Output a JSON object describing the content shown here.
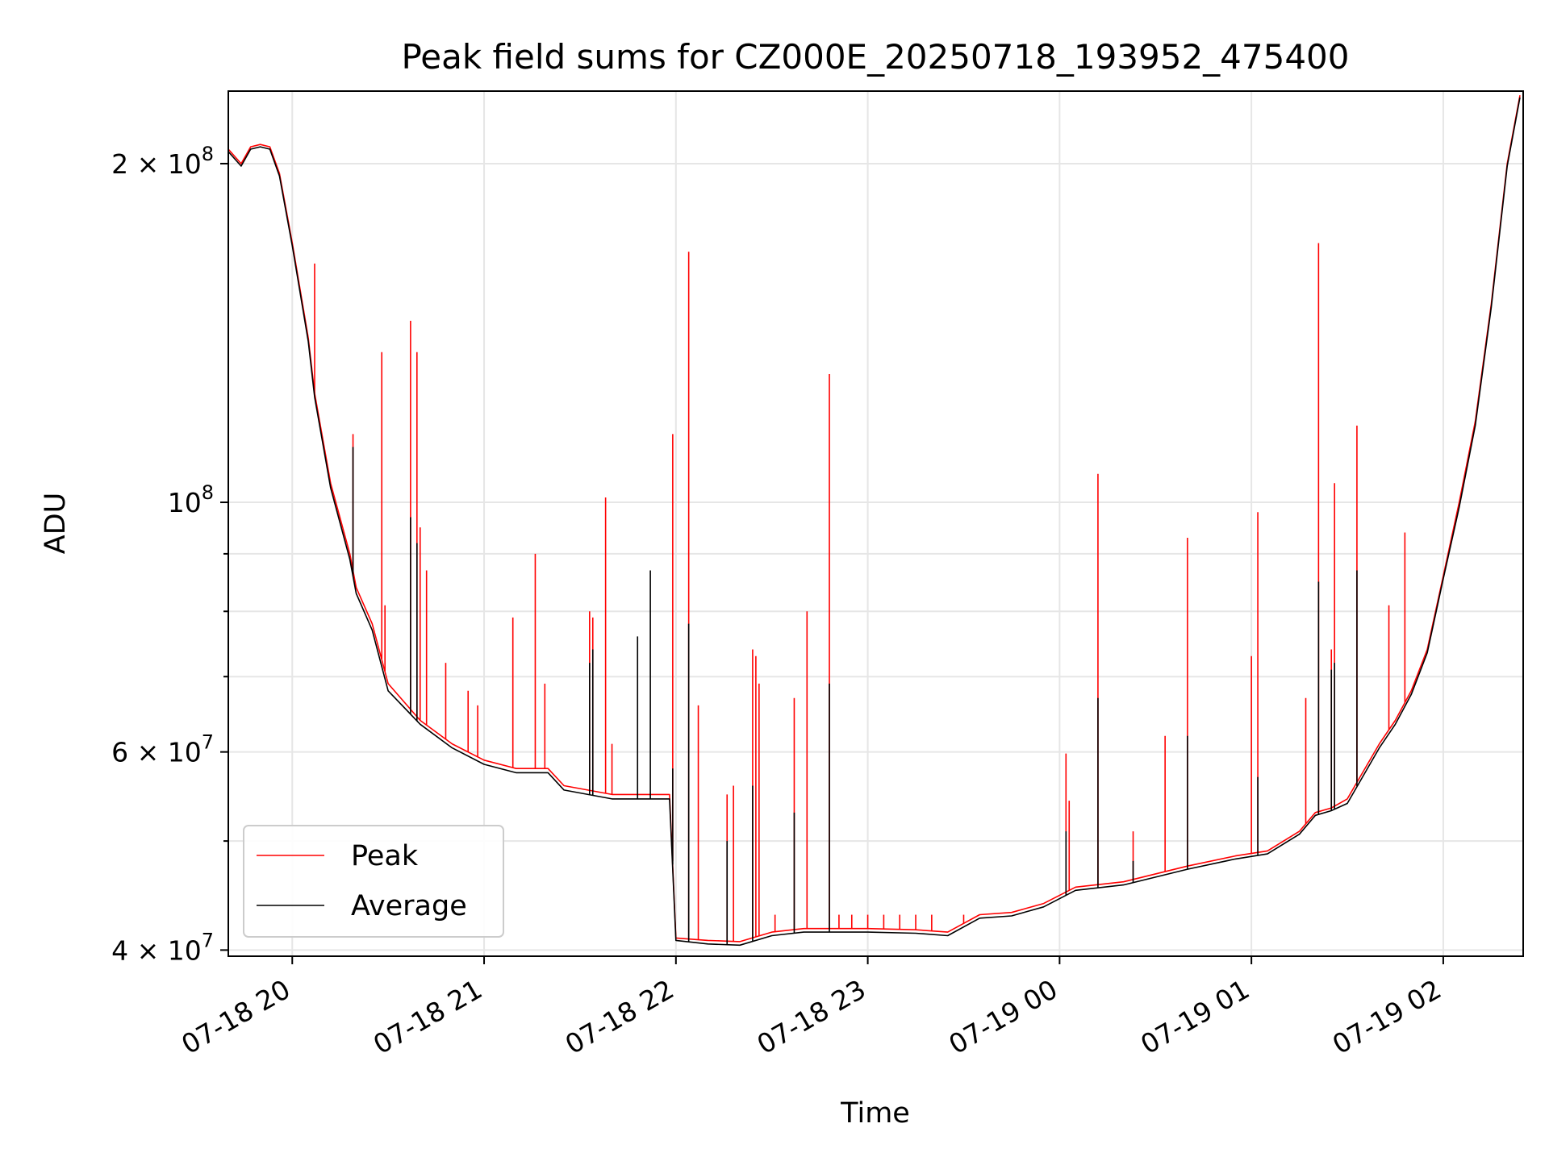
{
  "chart_data": {
    "type": "line",
    "title": "Peak field sums for CZ000E_20250718_193952_475400",
    "xlabel": "Time",
    "ylabel": "ADU",
    "y_scale": "log",
    "ylim": [
      39500000,
      232000000
    ],
    "xlim": [
      "2025-07-18 19:40",
      "2025-07-19 02:25"
    ],
    "x_tick_labels": [
      "07-18 20",
      "07-18 21",
      "07-18 22",
      "07-18 23",
      "07-19 00",
      "07-19 01",
      "07-19 02"
    ],
    "y_tick_labels": [
      {
        "value": 40000000,
        "base": "4",
        "exponent": "7"
      },
      {
        "value": 60000000,
        "base": "6",
        "exponent": "7"
      },
      {
        "value": 100000000,
        "base": "",
        "exponent": "8"
      },
      {
        "value": 200000000,
        "base": "2",
        "exponent": "8"
      }
    ],
    "grid": true,
    "legend_position": "lower-left",
    "series": [
      {
        "name": "Peak",
        "color": "#ff0000",
        "x": [
          "2025-07-18 19:40",
          "2025-07-18 19:44",
          "2025-07-18 19:47",
          "2025-07-18 19:50",
          "2025-07-18 19:53",
          "2025-07-18 19:56",
          "2025-07-18 20:00",
          "2025-07-18 20:05",
          "2025-07-18 20:07",
          "2025-07-18 20:12",
          "2025-07-18 20:18",
          "2025-07-18 20:20",
          "2025-07-18 20:25",
          "2025-07-18 20:30",
          "2025-07-18 20:40",
          "2025-07-18 20:50",
          "2025-07-18 21:00",
          "2025-07-18 21:10",
          "2025-07-18 21:20",
          "2025-07-18 21:25",
          "2025-07-18 21:40",
          "2025-07-18 21:58",
          "2025-07-18 22:00",
          "2025-07-18 22:10",
          "2025-07-18 22:20",
          "2025-07-18 22:30",
          "2025-07-18 22:40",
          "2025-07-18 23:00",
          "2025-07-18 23:15",
          "2025-07-18 23:25",
          "2025-07-18 23:35",
          "2025-07-18 23:45",
          "2025-07-18 23:55",
          "2025-07-19 00:05",
          "2025-07-19 00:20",
          "2025-07-19 00:40",
          "2025-07-19 00:55",
          "2025-07-19 01:05",
          "2025-07-19 01:15",
          "2025-07-19 01:20",
          "2025-07-19 01:25",
          "2025-07-19 01:30",
          "2025-07-19 01:40",
          "2025-07-19 01:45",
          "2025-07-19 01:50",
          "2025-07-19 01:55",
          "2025-07-19 02:00",
          "2025-07-19 02:05",
          "2025-07-19 02:10",
          "2025-07-19 02:15",
          "2025-07-19 02:20",
          "2025-07-19 02:24"
        ],
        "values": [
          206000000,
          200000000,
          207000000,
          208000000,
          207000000,
          196000000,
          170000000,
          140000000,
          125000000,
          104000000,
          90000000,
          84000000,
          78000000,
          69000000,
          64000000,
          61000000,
          59000000,
          58000000,
          58000000,
          56000000,
          55000000,
          55000000,
          41000000,
          40800000,
          40700000,
          41500000,
          41800000,
          41800000,
          41700000,
          41500000,
          43000000,
          43200000,
          44000000,
          45500000,
          46000000,
          47500000,
          48500000,
          49000000,
          51000000,
          53000000,
          53500000,
          54500000,
          61000000,
          64000000,
          68000000,
          74000000,
          86000000,
          100000000,
          118000000,
          150000000,
          200000000,
          230000000
        ],
        "spikes": [
          [
            "2025-07-18 20:07",
            163000000
          ],
          [
            "2025-07-18 20:19",
            115000000
          ],
          [
            "2025-07-18 20:28",
            136000000
          ],
          [
            "2025-07-18 20:29",
            81000000
          ],
          [
            "2025-07-18 20:37",
            145000000
          ],
          [
            "2025-07-18 20:39",
            136000000
          ],
          [
            "2025-07-18 20:40",
            95000000
          ],
          [
            "2025-07-18 20:42",
            87000000
          ],
          [
            "2025-07-18 20:48",
            72000000
          ],
          [
            "2025-07-18 20:55",
            68000000
          ],
          [
            "2025-07-18 20:58",
            66000000
          ],
          [
            "2025-07-18 21:09",
            79000000
          ],
          [
            "2025-07-18 21:16",
            90000000
          ],
          [
            "2025-07-18 21:19",
            69000000
          ],
          [
            "2025-07-18 21:33",
            80000000
          ],
          [
            "2025-07-18 21:34",
            79000000
          ],
          [
            "2025-07-18 21:38",
            101000000
          ],
          [
            "2025-07-18 21:40",
            61000000
          ],
          [
            "2025-07-18 21:59",
            115000000
          ],
          [
            "2025-07-18 22:04",
            167000000
          ],
          [
            "2025-07-18 22:07",
            66000000
          ],
          [
            "2025-07-18 22:16",
            55000000
          ],
          [
            "2025-07-18 22:18",
            56000000
          ],
          [
            "2025-07-18 22:24",
            74000000
          ],
          [
            "2025-07-18 22:25",
            73000000
          ],
          [
            "2025-07-18 22:26",
            69000000
          ],
          [
            "2025-07-18 22:31",
            43000000
          ],
          [
            "2025-07-18 22:37",
            67000000
          ],
          [
            "2025-07-18 22:41",
            80000000
          ],
          [
            "2025-07-18 22:48",
            130000000
          ],
          [
            "2025-07-18 22:51",
            43000000
          ],
          [
            "2025-07-18 22:55",
            43000000
          ],
          [
            "2025-07-18 23:00",
            43000000
          ],
          [
            "2025-07-18 23:05",
            43000000
          ],
          [
            "2025-07-18 23:10",
            43000000
          ],
          [
            "2025-07-18 23:15",
            43000000
          ],
          [
            "2025-07-18 23:20",
            43000000
          ],
          [
            "2025-07-18 23:30",
            43000000
          ],
          [
            "2025-07-19 00:02",
            59800000
          ],
          [
            "2025-07-19 00:03",
            54300000
          ],
          [
            "2025-07-19 00:12",
            106000000
          ],
          [
            "2025-07-19 00:23",
            51000000
          ],
          [
            "2025-07-19 00:33",
            62000000
          ],
          [
            "2025-07-19 00:40",
            93000000
          ],
          [
            "2025-07-19 01:00",
            73000000
          ],
          [
            "2025-07-19 01:02",
            98000000
          ],
          [
            "2025-07-19 01:17",
            67000000
          ],
          [
            "2025-07-19 01:21",
            170000000
          ],
          [
            "2025-07-19 01:25",
            74000000
          ],
          [
            "2025-07-19 01:26",
            104000000
          ],
          [
            "2025-07-19 01:33",
            117000000
          ],
          [
            "2025-07-19 01:43",
            81000000
          ],
          [
            "2025-07-19 01:48",
            94000000
          ]
        ]
      },
      {
        "name": "Average",
        "color": "#000000",
        "x": [
          "2025-07-18 19:40",
          "2025-07-18 19:44",
          "2025-07-18 19:47",
          "2025-07-18 19:50",
          "2025-07-18 19:53",
          "2025-07-18 19:56",
          "2025-07-18 20:00",
          "2025-07-18 20:05",
          "2025-07-18 20:07",
          "2025-07-18 20:12",
          "2025-07-18 20:18",
          "2025-07-18 20:20",
          "2025-07-18 20:25",
          "2025-07-18 20:30",
          "2025-07-18 20:40",
          "2025-07-18 20:50",
          "2025-07-18 21:00",
          "2025-07-18 21:10",
          "2025-07-18 21:20",
          "2025-07-18 21:25",
          "2025-07-18 21:40",
          "2025-07-18 21:58",
          "2025-07-18 22:00",
          "2025-07-18 22:10",
          "2025-07-18 22:20",
          "2025-07-18 22:30",
          "2025-07-18 22:40",
          "2025-07-18 23:00",
          "2025-07-18 23:15",
          "2025-07-18 23:25",
          "2025-07-18 23:35",
          "2025-07-18 23:45",
          "2025-07-18 23:55",
          "2025-07-19 00:05",
          "2025-07-19 00:20",
          "2025-07-19 00:40",
          "2025-07-19 00:55",
          "2025-07-19 01:05",
          "2025-07-19 01:15",
          "2025-07-19 01:20",
          "2025-07-19 01:25",
          "2025-07-19 01:30",
          "2025-07-19 01:40",
          "2025-07-19 01:45",
          "2025-07-19 01:50",
          "2025-07-19 01:55",
          "2025-07-19 02:00",
          "2025-07-19 02:05",
          "2025-07-19 02:10",
          "2025-07-19 02:15",
          "2025-07-19 02:20",
          "2025-07-19 02:24"
        ],
        "values": [
          205000000,
          199000000,
          206000000,
          207000000,
          206000000,
          195000000,
          169000000,
          139000000,
          124000000,
          103000000,
          89000000,
          83000000,
          77000000,
          68000000,
          63500000,
          60500000,
          58500000,
          57500000,
          57500000,
          55500000,
          54500000,
          54500000,
          40800000,
          40500000,
          40400000,
          41200000,
          41500000,
          41500000,
          41400000,
          41200000,
          42700000,
          42900000,
          43700000,
          45200000,
          45700000,
          47200000,
          48200000,
          48700000,
          50700000,
          52700000,
          53200000,
          54000000,
          60500000,
          63500000,
          67500000,
          73500000,
          85500000,
          99000000,
          117000000,
          149000000,
          199000000,
          229000000
        ],
        "spikes": [
          [
            "2025-07-18 20:19",
            112000000
          ],
          [
            "2025-07-18 20:37",
            97000000
          ],
          [
            "2025-07-18 20:39",
            92000000
          ],
          [
            "2025-07-18 21:33",
            72000000
          ],
          [
            "2025-07-18 21:34",
            74000000
          ],
          [
            "2025-07-18 21:48",
            76000000
          ],
          [
            "2025-07-18 21:52",
            87000000
          ],
          [
            "2025-07-18 21:59",
            58000000
          ],
          [
            "2025-07-18 22:04",
            78000000
          ],
          [
            "2025-07-18 22:16",
            50000000
          ],
          [
            "2025-07-18 22:24",
            56000000
          ],
          [
            "2025-07-18 22:37",
            53000000
          ],
          [
            "2025-07-18 22:48",
            69000000
          ],
          [
            "2025-07-19 00:02",
            51000000
          ],
          [
            "2025-07-19 00:12",
            67000000
          ],
          [
            "2025-07-19 00:23",
            48000000
          ],
          [
            "2025-07-19 00:40",
            62000000
          ],
          [
            "2025-07-19 01:02",
            57000000
          ],
          [
            "2025-07-19 01:21",
            85000000
          ],
          [
            "2025-07-19 01:25",
            71000000
          ],
          [
            "2025-07-19 01:26",
            72000000
          ],
          [
            "2025-07-19 01:33",
            87000000
          ]
        ]
      }
    ]
  }
}
